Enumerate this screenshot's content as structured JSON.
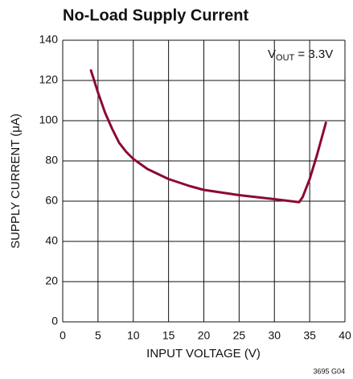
{
  "chart_data": {
    "type": "line",
    "title": "No-Load Supply Current",
    "annotation": {
      "main": "V",
      "sub": "OUT",
      "rest": " = 3.3V"
    },
    "xlabel": "INPUT VOLTAGE (V)",
    "ylabel": "SUPPLY CURRENT (μA)",
    "footnote": "3695 G04",
    "x": [
      4,
      5,
      6,
      7,
      8,
      9,
      10,
      12,
      15,
      18,
      20,
      25,
      30,
      33.5,
      34,
      35,
      36,
      37.3
    ],
    "series": [
      {
        "name": "Supply current",
        "color": "#8b0b30",
        "values": [
          125,
          114,
          104,
          96,
          89,
          84.5,
          81,
          76,
          71,
          67.5,
          65.6,
          63,
          61,
          59.5,
          62,
          71,
          82.5,
          99
        ]
      }
    ],
    "xlim": [
      0,
      40
    ],
    "xticks": [
      0,
      5,
      10,
      15,
      20,
      25,
      30,
      35,
      40
    ],
    "ylim": [
      0,
      140
    ],
    "yticks": [
      0,
      20,
      40,
      60,
      80,
      100,
      120,
      140
    ],
    "grid": true
  }
}
